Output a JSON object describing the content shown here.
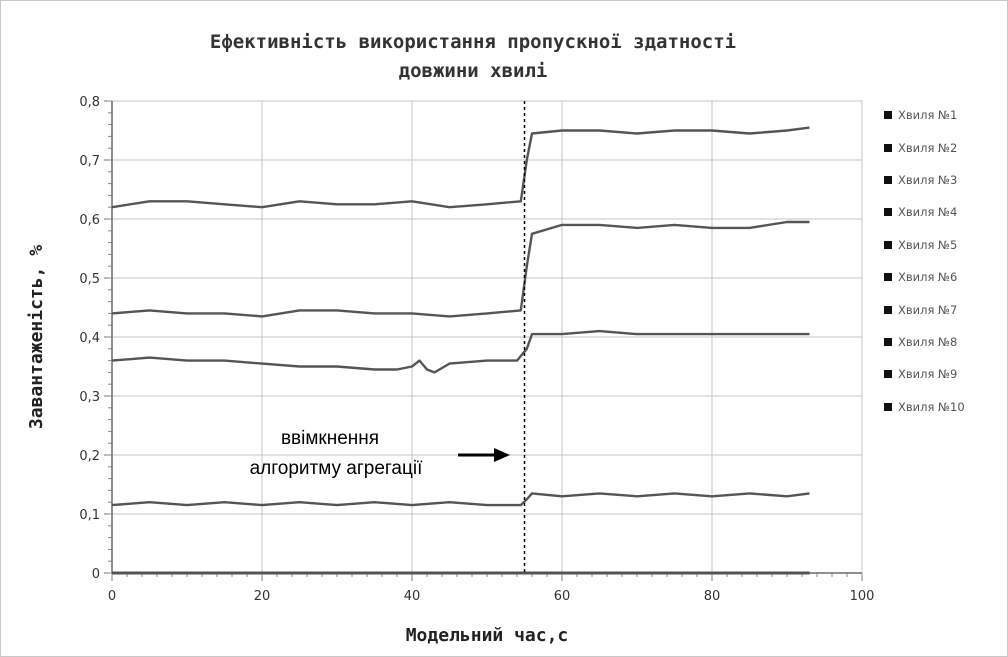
{
  "chart_data": {
    "type": "line",
    "title_line1": "Ефективність використання пропускної здатності",
    "title_line2": "довжини хвилі",
    "xlabel": "Модельний час,с",
    "ylabel": "Завантаженість, %",
    "xlim": [
      0,
      100
    ],
    "ylim": [
      0,
      0.8
    ],
    "x_ticks": [
      "0",
      "20",
      "40",
      "60",
      "80",
      "100"
    ],
    "y_ticks": [
      "0",
      "0,1",
      "0,2",
      "0,3",
      "0,4",
      "0,5",
      "0,6",
      "0,7",
      "0,8"
    ],
    "grid": true,
    "legend_position": "right",
    "legend": [
      "Хвиля №1",
      "Хвиля №2",
      "Хвиля №3",
      "Хвиля №4",
      "Хвиля №5",
      "Хвиля №6",
      "Хвиля №7",
      "Хвиля №8",
      "Хвиля №9",
      "Хвиля №10"
    ],
    "line_color": "#555555",
    "event_x": 55,
    "annotation_line1": "ввімкнення",
    "annotation_line2": "алгоритму агрегації",
    "series": [
      {
        "x": [
          0,
          5,
          10,
          15,
          20,
          25,
          30,
          35,
          40,
          45,
          50,
          54.5,
          55.3,
          56,
          60,
          65,
          70,
          75,
          80,
          85,
          90,
          93
        ],
        "values": [
          0.62,
          0.63,
          0.63,
          0.625,
          0.62,
          0.63,
          0.625,
          0.625,
          0.63,
          0.62,
          0.625,
          0.63,
          0.7,
          0.745,
          0.75,
          0.75,
          0.745,
          0.75,
          0.75,
          0.745,
          0.75,
          0.755
        ]
      },
      {
        "x": [
          0,
          5,
          10,
          15,
          20,
          25,
          30,
          35,
          40,
          45,
          50,
          54.5,
          55.3,
          56,
          60,
          65,
          70,
          75,
          80,
          85,
          90,
          93
        ],
        "values": [
          0.44,
          0.445,
          0.44,
          0.44,
          0.435,
          0.445,
          0.445,
          0.44,
          0.44,
          0.435,
          0.44,
          0.445,
          0.52,
          0.575,
          0.59,
          0.59,
          0.585,
          0.59,
          0.585,
          0.585,
          0.595,
          0.595
        ]
      },
      {
        "x": [
          0,
          5,
          10,
          15,
          20,
          25,
          30,
          35,
          38,
          40,
          41,
          42,
          43,
          45,
          50,
          54,
          55.3,
          56,
          60,
          65,
          70,
          75,
          80,
          85,
          90,
          93
        ],
        "values": [
          0.36,
          0.365,
          0.36,
          0.36,
          0.355,
          0.35,
          0.35,
          0.345,
          0.345,
          0.35,
          0.36,
          0.345,
          0.34,
          0.355,
          0.36,
          0.36,
          0.38,
          0.405,
          0.405,
          0.41,
          0.405,
          0.405,
          0.405,
          0.405,
          0.405,
          0.405
        ]
      },
      {
        "x": [
          0,
          5,
          10,
          15,
          20,
          25,
          30,
          35,
          40,
          45,
          50,
          54.5,
          55.3,
          56,
          60,
          65,
          70,
          75,
          80,
          85,
          90,
          93
        ],
        "values": [
          0.115,
          0.12,
          0.115,
          0.12,
          0.115,
          0.12,
          0.115,
          0.12,
          0.115,
          0.12,
          0.115,
          0.115,
          0.125,
          0.135,
          0.13,
          0.135,
          0.13,
          0.135,
          0.13,
          0.135,
          0.13,
          0.135
        ]
      },
      {
        "x": [
          0,
          93
        ],
        "values": [
          0,
          0
        ]
      }
    ]
  }
}
